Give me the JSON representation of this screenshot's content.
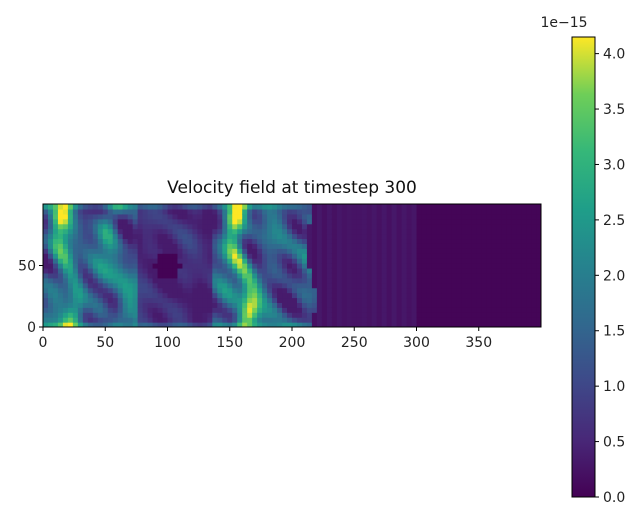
{
  "chart_data": {
    "type": "heatmap",
    "title": "Velocity field at timestep 300",
    "xlabel": "",
    "ylabel": "",
    "xlim": [
      0,
      400
    ],
    "ylim": [
      0,
      100
    ],
    "x_ticks": [
      0,
      50,
      100,
      150,
      200,
      250,
      300,
      350
    ],
    "x_tick_labels": [
      "0",
      "50",
      "100",
      "150",
      "200",
      "250",
      "300",
      "350"
    ],
    "y_ticks": [
      0,
      50
    ],
    "y_tick_labels": [
      "0",
      "50"
    ],
    "colormap": "viridis",
    "colorbar": {
      "range": [
        0,
        4.15
      ],
      "exponent_label": "1e−15",
      "ticks": [
        0.0,
        0.5,
        1.0,
        1.5,
        2.0,
        2.5,
        3.0,
        3.5,
        4.0
      ],
      "tick_labels": [
        "0.0",
        "0.5",
        "1.0",
        "1.5",
        "2.0",
        "2.5",
        "3.0",
        "3.5",
        "4.0"
      ]
    },
    "obstacle": {
      "center_x": 100,
      "center_y": 50,
      "radius": 10
    },
    "regions": [
      {
        "x_range": [
          0,
          215
        ],
        "description_level": "turbulent wake, values ~0.5–4.0"
      },
      {
        "x_range": [
          215,
          300
        ],
        "level": 0.25
      },
      {
        "x_range": [
          300,
          400
        ],
        "level": 0.05
      }
    ],
    "high_value_bands": [
      {
        "x_center": 20,
        "level": 3.5
      },
      {
        "x_center": 160,
        "level": 4.1
      },
      {
        "x_center": 60,
        "level": 2.6
      }
    ],
    "grid": false
  }
}
